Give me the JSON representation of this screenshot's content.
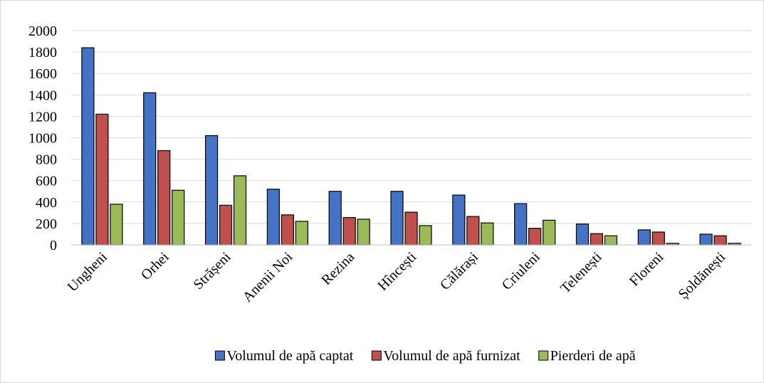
{
  "chart_data": {
    "type": "bar",
    "categories": [
      "Ungheni",
      "Orhei",
      "Strășeni",
      "Anenii Noi",
      "Rezina",
      "Hîncești",
      "Călărași",
      "Criuleni",
      "Telenești",
      "Floreni",
      "Șoldănești"
    ],
    "series": [
      {
        "name": "Volumul de apă captat",
        "color": "#4472c4",
        "values": [
          1840,
          1420,
          1020,
          520,
          500,
          500,
          465,
          385,
          195,
          140,
          100
        ]
      },
      {
        "name": "Volumul de apă furnizat",
        "color": "#c0504d",
        "values": [
          1220,
          880,
          370,
          280,
          255,
          305,
          265,
          155,
          105,
          120,
          85
        ]
      },
      {
        "name": "Pierderi de apă",
        "color": "#9bbb59",
        "values": [
          380,
          510,
          645,
          220,
          240,
          180,
          205,
          230,
          85,
          15,
          15
        ]
      }
    ],
    "ylim": [
      0,
      2000
    ],
    "yticks": [
      0,
      200,
      400,
      600,
      800,
      1000,
      1200,
      1400,
      1600,
      1800,
      2000
    ],
    "grid": true,
    "legend": "bottom"
  }
}
